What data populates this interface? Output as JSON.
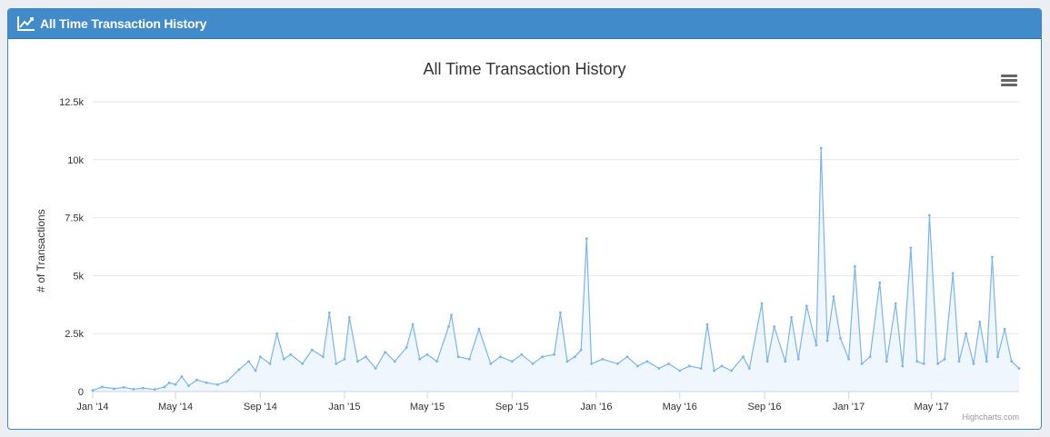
{
  "panel": {
    "heading": "All Time Transaction History",
    "heading_icon": "line-chart-icon",
    "color": "#428bca"
  },
  "chart_data": {
    "type": "line",
    "title": "All Time Transaction History",
    "ylabel": "# of Transactions",
    "xlabel": "",
    "ylim": [
      0,
      12500
    ],
    "y_ticks": [
      0,
      2500,
      5000,
      7500,
      10000,
      12500
    ],
    "y_tick_labels": [
      "0",
      "2.5k",
      "5k",
      "7.5k",
      "10k",
      "12.5k"
    ],
    "x_tick_labels": [
      "Jan '14",
      "May '14",
      "Sep '14",
      "Jan '15",
      "May '15",
      "Sep '15",
      "Jan '16",
      "May '16",
      "Sep '16",
      "Jan '17",
      "May '17"
    ],
    "x_ticks": [
      "2014-01-01",
      "2014-05-01",
      "2014-09-01",
      "2015-01-01",
      "2015-05-01",
      "2015-09-01",
      "2016-01-01",
      "2016-05-01",
      "2016-09-01",
      "2017-01-01",
      "2017-05-01"
    ],
    "xlim": [
      "2014-01-01",
      "2017-09-05"
    ],
    "grid": true,
    "legend": "none",
    "series_color": "#7cb5ec",
    "credits": "Highcharts.com",
    "menu_icon": "hamburger-menu-icon",
    "series": [
      {
        "points": [
          [
            "2014-01-01",
            50
          ],
          [
            "2014-01-15",
            200
          ],
          [
            "2014-02-01",
            120
          ],
          [
            "2014-02-15",
            180
          ],
          [
            "2014-03-01",
            100
          ],
          [
            "2014-03-15",
            150
          ],
          [
            "2014-04-01",
            90
          ],
          [
            "2014-04-15",
            200
          ],
          [
            "2014-04-22",
            380
          ],
          [
            "2014-05-01",
            300
          ],
          [
            "2014-05-10",
            650
          ],
          [
            "2014-05-20",
            250
          ],
          [
            "2014-06-01",
            500
          ],
          [
            "2014-06-15",
            380
          ],
          [
            "2014-07-01",
            300
          ],
          [
            "2014-07-15",
            450
          ],
          [
            "2014-08-01",
            950
          ],
          [
            "2014-08-15",
            1300
          ],
          [
            "2014-08-25",
            900
          ],
          [
            "2014-09-01",
            1500
          ],
          [
            "2014-09-15",
            1200
          ],
          [
            "2014-09-25",
            2500
          ],
          [
            "2014-10-05",
            1400
          ],
          [
            "2014-10-15",
            1600
          ],
          [
            "2014-11-01",
            1200
          ],
          [
            "2014-11-15",
            1800
          ],
          [
            "2014-12-01",
            1500
          ],
          [
            "2014-12-10",
            3400
          ],
          [
            "2014-12-20",
            1200
          ],
          [
            "2015-01-01",
            1400
          ],
          [
            "2015-01-08",
            3200
          ],
          [
            "2015-01-20",
            1300
          ],
          [
            "2015-02-01",
            1500
          ],
          [
            "2015-02-15",
            1000
          ],
          [
            "2015-03-01",
            1700
          ],
          [
            "2015-03-15",
            1300
          ],
          [
            "2015-04-01",
            1900
          ],
          [
            "2015-04-10",
            2900
          ],
          [
            "2015-04-20",
            1400
          ],
          [
            "2015-05-01",
            1600
          ],
          [
            "2015-05-15",
            1300
          ],
          [
            "2015-06-01",
            2800
          ],
          [
            "2015-06-05",
            3300
          ],
          [
            "2015-06-15",
            1500
          ],
          [
            "2015-07-01",
            1400
          ],
          [
            "2015-07-15",
            2700
          ],
          [
            "2015-08-01",
            1200
          ],
          [
            "2015-08-15",
            1500
          ],
          [
            "2015-09-01",
            1300
          ],
          [
            "2015-09-15",
            1600
          ],
          [
            "2015-10-01",
            1200
          ],
          [
            "2015-10-15",
            1500
          ],
          [
            "2015-11-01",
            1600
          ],
          [
            "2015-11-10",
            3400
          ],
          [
            "2015-11-20",
            1300
          ],
          [
            "2015-12-01",
            1500
          ],
          [
            "2015-12-10",
            1800
          ],
          [
            "2015-12-18",
            6600
          ],
          [
            "2015-12-25",
            1200
          ],
          [
            "2016-01-10",
            1400
          ],
          [
            "2016-02-01",
            1200
          ],
          [
            "2016-02-15",
            1500
          ],
          [
            "2016-03-01",
            1100
          ],
          [
            "2016-03-15",
            1300
          ],
          [
            "2016-04-01",
            1000
          ],
          [
            "2016-04-15",
            1200
          ],
          [
            "2016-05-01",
            900
          ],
          [
            "2016-05-15",
            1100
          ],
          [
            "2016-06-01",
            1000
          ],
          [
            "2016-06-10",
            2900
          ],
          [
            "2016-06-20",
            900
          ],
          [
            "2016-07-01",
            1100
          ],
          [
            "2016-07-15",
            900
          ],
          [
            "2016-08-01",
            1500
          ],
          [
            "2016-08-10",
            1000
          ],
          [
            "2016-08-28",
            3800
          ],
          [
            "2016-09-05",
            1300
          ],
          [
            "2016-09-15",
            2800
          ],
          [
            "2016-10-01",
            1300
          ],
          [
            "2016-10-10",
            3200
          ],
          [
            "2016-10-20",
            1400
          ],
          [
            "2016-11-01",
            3700
          ],
          [
            "2016-11-15",
            2000
          ],
          [
            "2016-11-22",
            10500
          ],
          [
            "2016-12-01",
            2200
          ],
          [
            "2016-12-10",
            4100
          ],
          [
            "2016-12-20",
            2300
          ],
          [
            "2017-01-01",
            1400
          ],
          [
            "2017-01-10",
            5400
          ],
          [
            "2017-01-20",
            1200
          ],
          [
            "2017-02-01",
            1500
          ],
          [
            "2017-02-15",
            4700
          ],
          [
            "2017-02-25",
            1300
          ],
          [
            "2017-03-10",
            3800
          ],
          [
            "2017-03-20",
            1100
          ],
          [
            "2017-04-01",
            6200
          ],
          [
            "2017-04-10",
            1300
          ],
          [
            "2017-04-20",
            1200
          ],
          [
            "2017-04-28",
            7600
          ],
          [
            "2017-05-10",
            1200
          ],
          [
            "2017-05-20",
            1400
          ],
          [
            "2017-06-01",
            5100
          ],
          [
            "2017-06-10",
            1300
          ],
          [
            "2017-06-20",
            2500
          ],
          [
            "2017-07-01",
            1200
          ],
          [
            "2017-07-10",
            3000
          ],
          [
            "2017-07-20",
            1300
          ],
          [
            "2017-07-28",
            5800
          ],
          [
            "2017-08-05",
            1500
          ],
          [
            "2017-08-15",
            2700
          ],
          [
            "2017-08-25",
            1300
          ],
          [
            "2017-09-05",
            1000
          ]
        ]
      }
    ]
  }
}
